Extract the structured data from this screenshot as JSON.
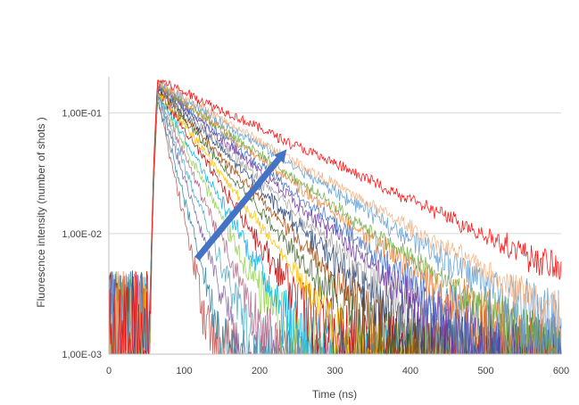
{
  "chart_data": {
    "type": "line",
    "title": "",
    "xlabel": "Time (ns)",
    "ylabel": "Fluorescnce intensity (number of shots )",
    "x_scale": "linear",
    "y_scale": "log",
    "xlim": [
      0,
      600
    ],
    "ylim": [
      0.001,
      0.2
    ],
    "x_ticks": [
      0,
      100,
      200,
      300,
      400,
      500,
      600
    ],
    "x_tick_labels": [
      "0",
      "100",
      "200",
      "300",
      "400",
      "500",
      "600"
    ],
    "y_ticks": [
      0.001,
      0.01,
      0.1
    ],
    "y_tick_labels": [
      "1,00E-03",
      "1,00E-02",
      "1,00E-01"
    ],
    "grid": "horizontal",
    "legend": "none",
    "rise_start_ns": 52,
    "peak_time_ns": 65,
    "series_style": "noisy decay curves, many overlapping series",
    "series": [
      {
        "color": "#ff0000",
        "peak": 0.19,
        "tau_ns": 145
      },
      {
        "color": "#f4b183",
        "peak": 0.18,
        "tau_ns": 120
      },
      {
        "color": "#5b9bd5",
        "peak": 0.18,
        "tau_ns": 112
      },
      {
        "color": "#70ad47",
        "peak": 0.175,
        "tau_ns": 100
      },
      {
        "color": "#ed7d31",
        "peak": 0.175,
        "tau_ns": 95
      },
      {
        "color": "#4472c4",
        "peak": 0.17,
        "tau_ns": 88
      },
      {
        "color": "#7030a0",
        "peak": 0.17,
        "tau_ns": 82
      },
      {
        "color": "#a5a5a5",
        "peak": 0.165,
        "tau_ns": 76
      },
      {
        "color": "#264478",
        "peak": 0.165,
        "tau_ns": 70
      },
      {
        "color": "#9e480e",
        "peak": 0.16,
        "tau_ns": 64
      },
      {
        "color": "#43682b",
        "peak": 0.16,
        "tau_ns": 58
      },
      {
        "color": "#ffc000",
        "peak": 0.155,
        "tau_ns": 52
      },
      {
        "color": "#c00000",
        "peak": 0.155,
        "tau_ns": 46
      },
      {
        "color": "#00b0f0",
        "peak": 0.15,
        "tau_ns": 40
      },
      {
        "color": "#92d050",
        "peak": 0.15,
        "tau_ns": 35
      },
      {
        "color": "#b4678a",
        "peak": 0.145,
        "tau_ns": 30
      },
      {
        "color": "#4bacc6",
        "peak": 0.14,
        "tau_ns": 26
      },
      {
        "color": "#8064a2",
        "peak": 0.14,
        "tau_ns": 22
      },
      {
        "color": "#31859c",
        "peak": 0.135,
        "tau_ns": 18
      },
      {
        "color": "#c0504d",
        "peak": 0.13,
        "tau_ns": 15
      }
    ],
    "arrow": {
      "from": [
        117,
        0.0062
      ],
      "to": [
        236,
        0.05
      ],
      "color": "#4472c4"
    }
  }
}
